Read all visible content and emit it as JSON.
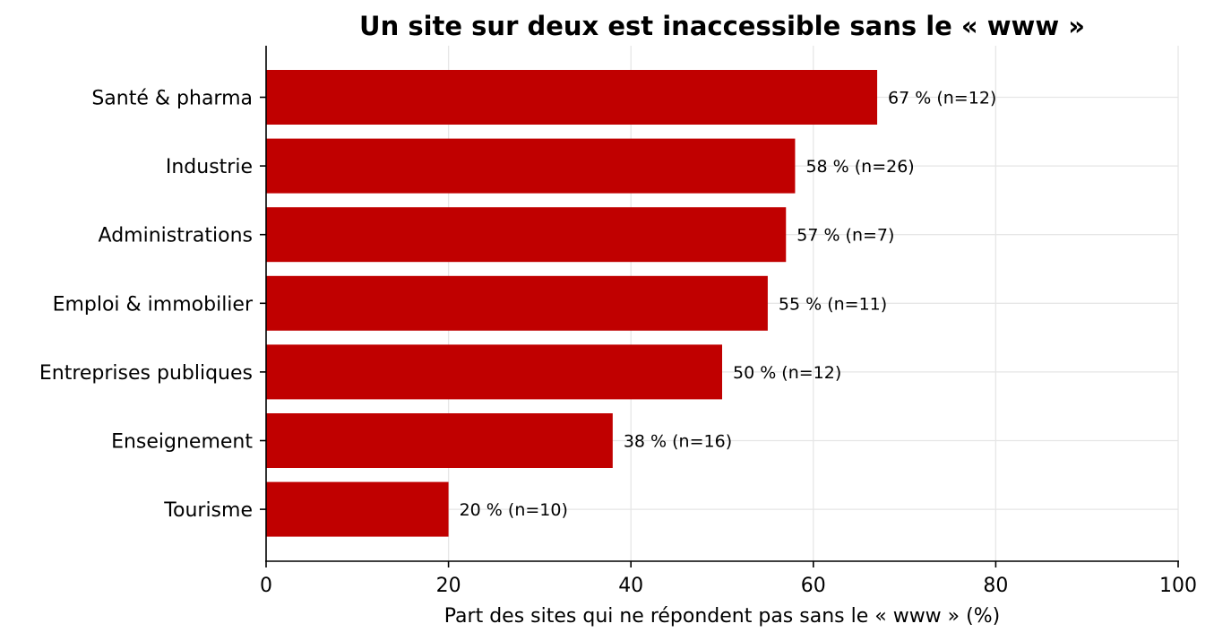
{
  "chart_data": {
    "type": "bar",
    "orientation": "horizontal",
    "title": "Un site sur deux est inaccessible sans le « www »",
    "xlabel": "Part des sites qui ne répondent pas sans le « www » (%)",
    "ylabel": "",
    "xlim": [
      0,
      100
    ],
    "xticks": [
      "0",
      "20",
      "40",
      "60",
      "80",
      "100"
    ],
    "grid": true,
    "bar_color": "#c00000",
    "categories": [
      "Santé & pharma",
      "Industrie",
      "Administrations",
      "Emploi & immobilier",
      "Entreprises publiques",
      "Enseignement",
      "Tourisme"
    ],
    "values": [
      67,
      58,
      57,
      55,
      50,
      38,
      20
    ],
    "data_labels": [
      "67 %  (n=12)",
      "58 %  (n=26)",
      "57 %  (n=7)",
      "55 %  (n=11)",
      "50 %  (n=12)",
      "38 %  (n=16)",
      "20 %  (n=10)"
    ]
  }
}
